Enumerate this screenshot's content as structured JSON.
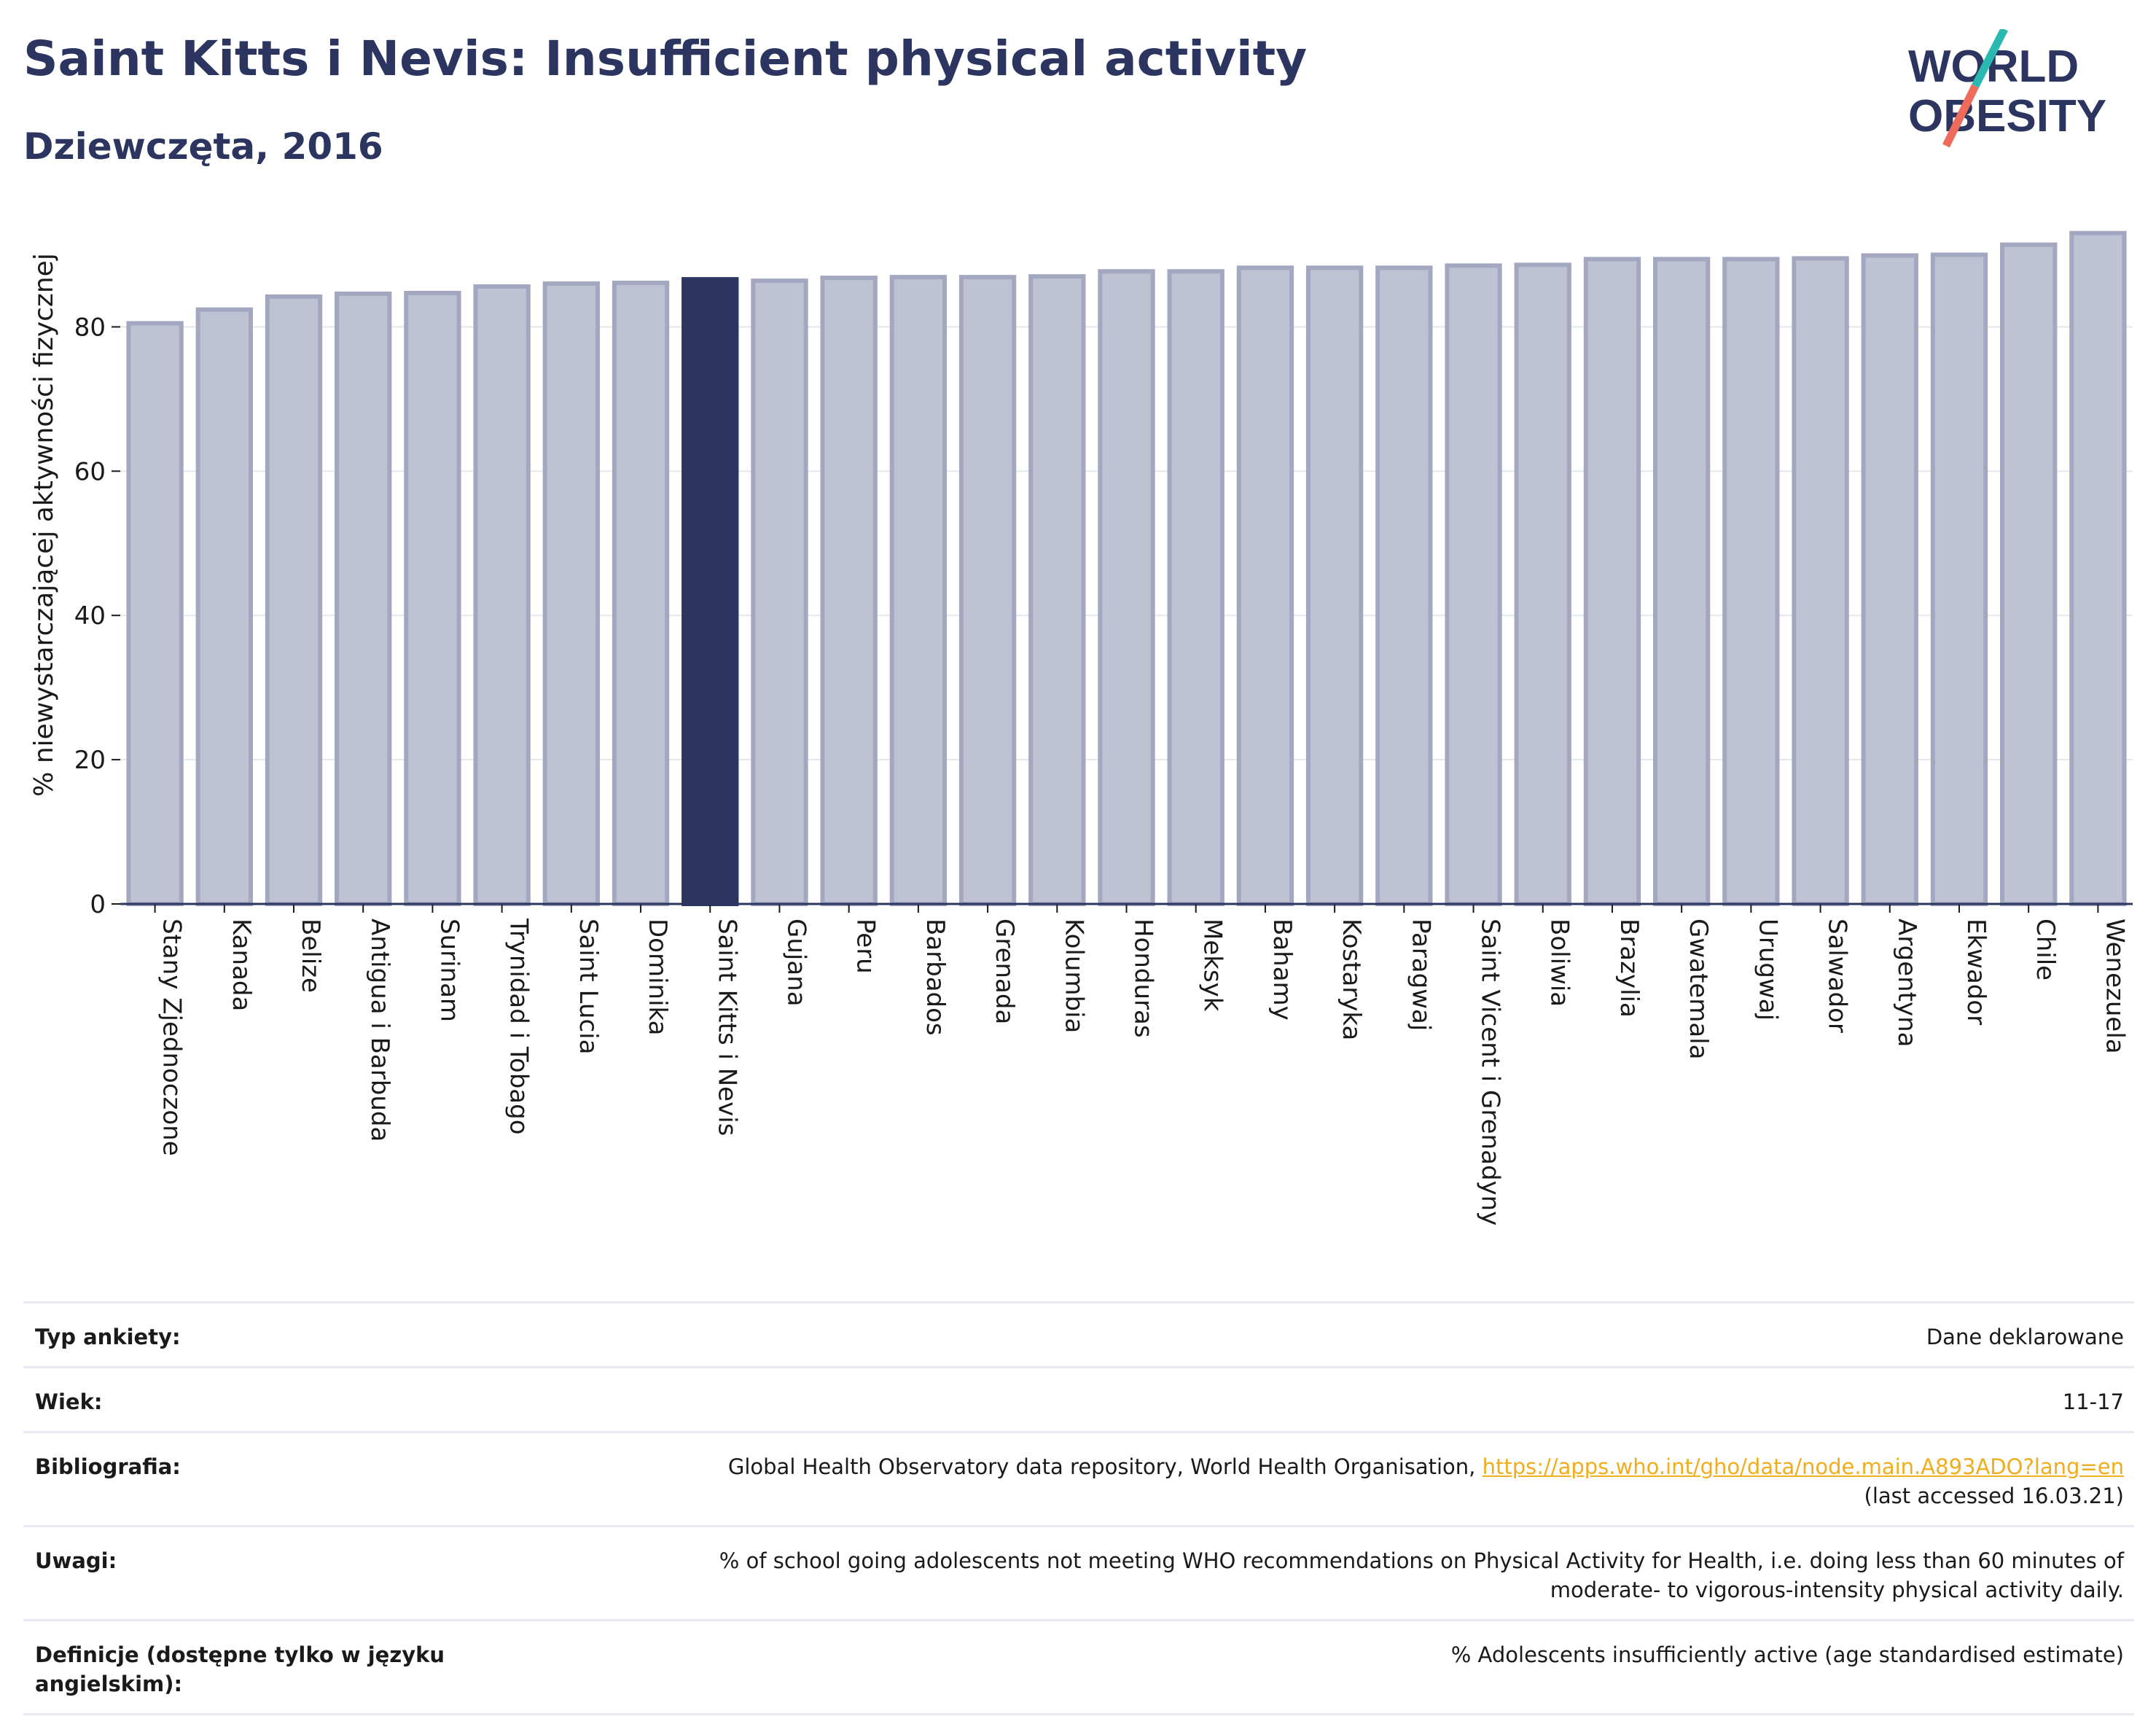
{
  "header": {
    "title": "Saint Kitts i Nevis: Insufficient physical activity",
    "subtitle": "Dziewczęta, 2016"
  },
  "logo": {
    "line1": "WORLD",
    "line2": "OBESITY"
  },
  "colors": {
    "bar": "#bfc2d2",
    "bar_border": "#a3a8c0",
    "highlight": "#2b3560",
    "title": "#2b3560",
    "link": "#f0ad1d"
  },
  "chart_data": {
    "type": "bar",
    "ylabel": "% niewystarczającej aktywności fizycznej",
    "xlabel": "",
    "ylim": [
      0,
      95
    ],
    "yticks": [
      0,
      20,
      40,
      60,
      80
    ],
    "grid": true,
    "highlight": "Saint Kitts i Nevis",
    "categories": [
      "Stany Zjednoczone",
      "Kanada",
      "Belize",
      "Antigua i Barbuda",
      "Surinam",
      "Trynidad i Tobago",
      "Saint Lucia",
      "Dominika",
      "Saint Kitts i Nevis",
      "Gujana",
      "Peru",
      "Barbados",
      "Grenada",
      "Kolumbia",
      "Honduras",
      "Meksyk",
      "Bahamy",
      "Kostaryka",
      "Paragwaj",
      "Saint Vicent i Grenadyny",
      "Boliwia",
      "Brazylia",
      "Gwatemala",
      "Urugwaj",
      "Salwador",
      "Argentyna",
      "Ekwador",
      "Chile",
      "Wenezuela"
    ],
    "values": [
      80.5,
      82.4,
      84.2,
      84.6,
      84.7,
      85.6,
      86.0,
      86.1,
      86.6,
      86.4,
      86.8,
      86.9,
      86.9,
      87.0,
      87.7,
      87.7,
      88.2,
      88.2,
      88.2,
      88.5,
      88.6,
      89.4,
      89.4,
      89.4,
      89.5,
      89.9,
      90.0,
      91.4,
      93.0
    ]
  },
  "meta": {
    "survey_label": "Typ ankiety:",
    "survey_value": "Dane deklarowane",
    "age_label": "Wiek:",
    "age_value": "11-17",
    "bib_label": "Bibliografia:",
    "bib_text": "Global Health Observatory data repository, World Health Organisation, ",
    "bib_link": "https://apps.who.int/gho/data/node.main.A893ADO?lang=en",
    "bib_accessed": "(last accessed 16.03.21)",
    "notes_label": "Uwagi:",
    "notes_line1": "% of school going adolescents not meeting WHO recommendations on Physical Activity for Health, i.e. doing less than 60 minutes of",
    "notes_line2": "moderate- to vigorous-intensity physical activity daily.",
    "def_label": "Definicje (dostępne tylko w języku angielskim):",
    "def_value": "% Adolescents insufficiently active (age standardised estimate)"
  }
}
